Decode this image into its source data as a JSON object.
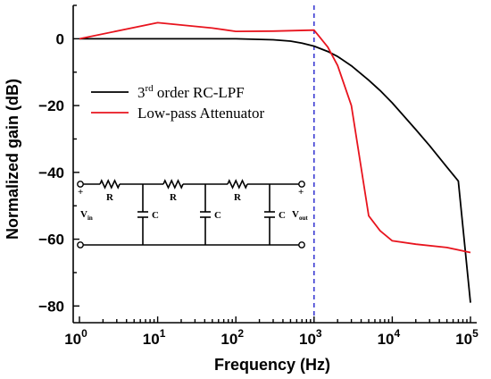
{
  "chart_data": {
    "type": "line",
    "xscale": "log",
    "xlim": [
      1,
      100000
    ],
    "ylim": [
      -85,
      10
    ],
    "xlabel": "Frequency (Hz)",
    "ylabel": "Normalized gain (dB)",
    "x_ticks": [
      {
        "base": "10",
        "exp": "0"
      },
      {
        "base": "10",
        "exp": "1"
      },
      {
        "base": "10",
        "exp": "2"
      },
      {
        "base": "10",
        "exp": "3"
      },
      {
        "base": "10",
        "exp": "4"
      },
      {
        "base": "10",
        "exp": "5"
      }
    ],
    "y_ticks": [
      "0",
      "−20",
      "−40",
      "−60",
      "−80"
    ],
    "y_tick_values": [
      0,
      -20,
      -40,
      -60,
      -80
    ],
    "cutoff_frequency": 1000,
    "legend_position": "upper-left",
    "series": [
      {
        "legend_main": "3",
        "legend_sup": "rd",
        "legend_rest": " order RC-LPF",
        "color": "#000000",
        "x": [
          1,
          10,
          100,
          300,
          500,
          700,
          1000,
          1500,
          2000,
          3000,
          5000,
          7000,
          10000,
          20000,
          30000,
          50000,
          70000,
          100000
        ],
        "y": [
          0,
          0,
          0,
          -0.3,
          -0.7,
          -1.3,
          -2.2,
          -3.8,
          -5.3,
          -8.1,
          -12.4,
          -15.5,
          -19.2,
          -27.2,
          -32.0,
          -38.4,
          -42.6,
          -79
        ]
      },
      {
        "legend_main": "Low-pass Attenuator",
        "color": "#e8141e",
        "x": [
          1,
          10,
          50,
          100,
          300,
          1000,
          1500,
          2000,
          3000,
          5000,
          7000,
          10000,
          20000,
          50000,
          100000
        ],
        "y": [
          0,
          4.8,
          3.2,
          2.2,
          2.3,
          2.6,
          -2.5,
          -8,
          -20,
          -53,
          -57.5,
          -60.5,
          -61.5,
          -62.5,
          -64
        ]
      }
    ],
    "circuit": {
      "resistor_label": "R",
      "capacitor_label": "C",
      "vin_label": "V",
      "vin_sub": "in",
      "vout_label": "V",
      "vout_sub": "out",
      "plus": "+"
    }
  },
  "colors": {
    "cutoff_line": "#2222cc",
    "rc_lpf": "#000000",
    "attenuator": "#e8141e"
  }
}
